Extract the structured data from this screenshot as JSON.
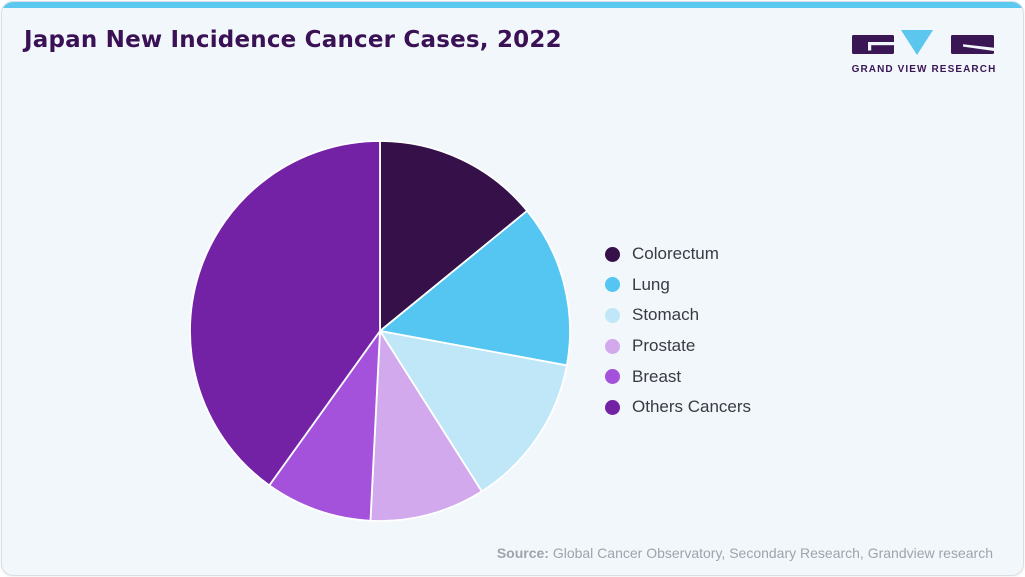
{
  "header": {
    "title": "Japan New Incidence Cancer Cases, 2022",
    "logo": {
      "brand": "GRAND VIEW RESEARCH"
    }
  },
  "brand_colors": {
    "accent_bar": "#5BC8F0",
    "card_background": "#F1F7FB",
    "title_text": "#3A1155",
    "logo_dark": "#3A1655",
    "logo_blue": "#5BC6EE",
    "source_text": "#9DA4AC"
  },
  "chart_data": {
    "type": "pie",
    "title": "Japan New Incidence Cancer Cases, 2022",
    "unit": "%",
    "start_angle_deg": 0,
    "direction": "clockwise",
    "legend_position": "right",
    "slices": [
      {
        "label": "Colorectum",
        "value": 14.1,
        "color": "#351049"
      },
      {
        "label": "Lung",
        "value": 13.8,
        "color": "#55C6F1"
      },
      {
        "label": "Stomach",
        "value": 13.1,
        "color": "#BFE7F8"
      },
      {
        "label": "Prostate",
        "value": 9.8,
        "color": "#D3A9ED"
      },
      {
        "label": "Breast",
        "value": 9.1,
        "color": "#A452DB"
      },
      {
        "label": "Others Cancers",
        "value": 40.1,
        "color": "#7322A6"
      }
    ]
  },
  "source": {
    "label": "Source:",
    "text": " Global Cancer Observatory, Secondary Research, Grandview research"
  }
}
